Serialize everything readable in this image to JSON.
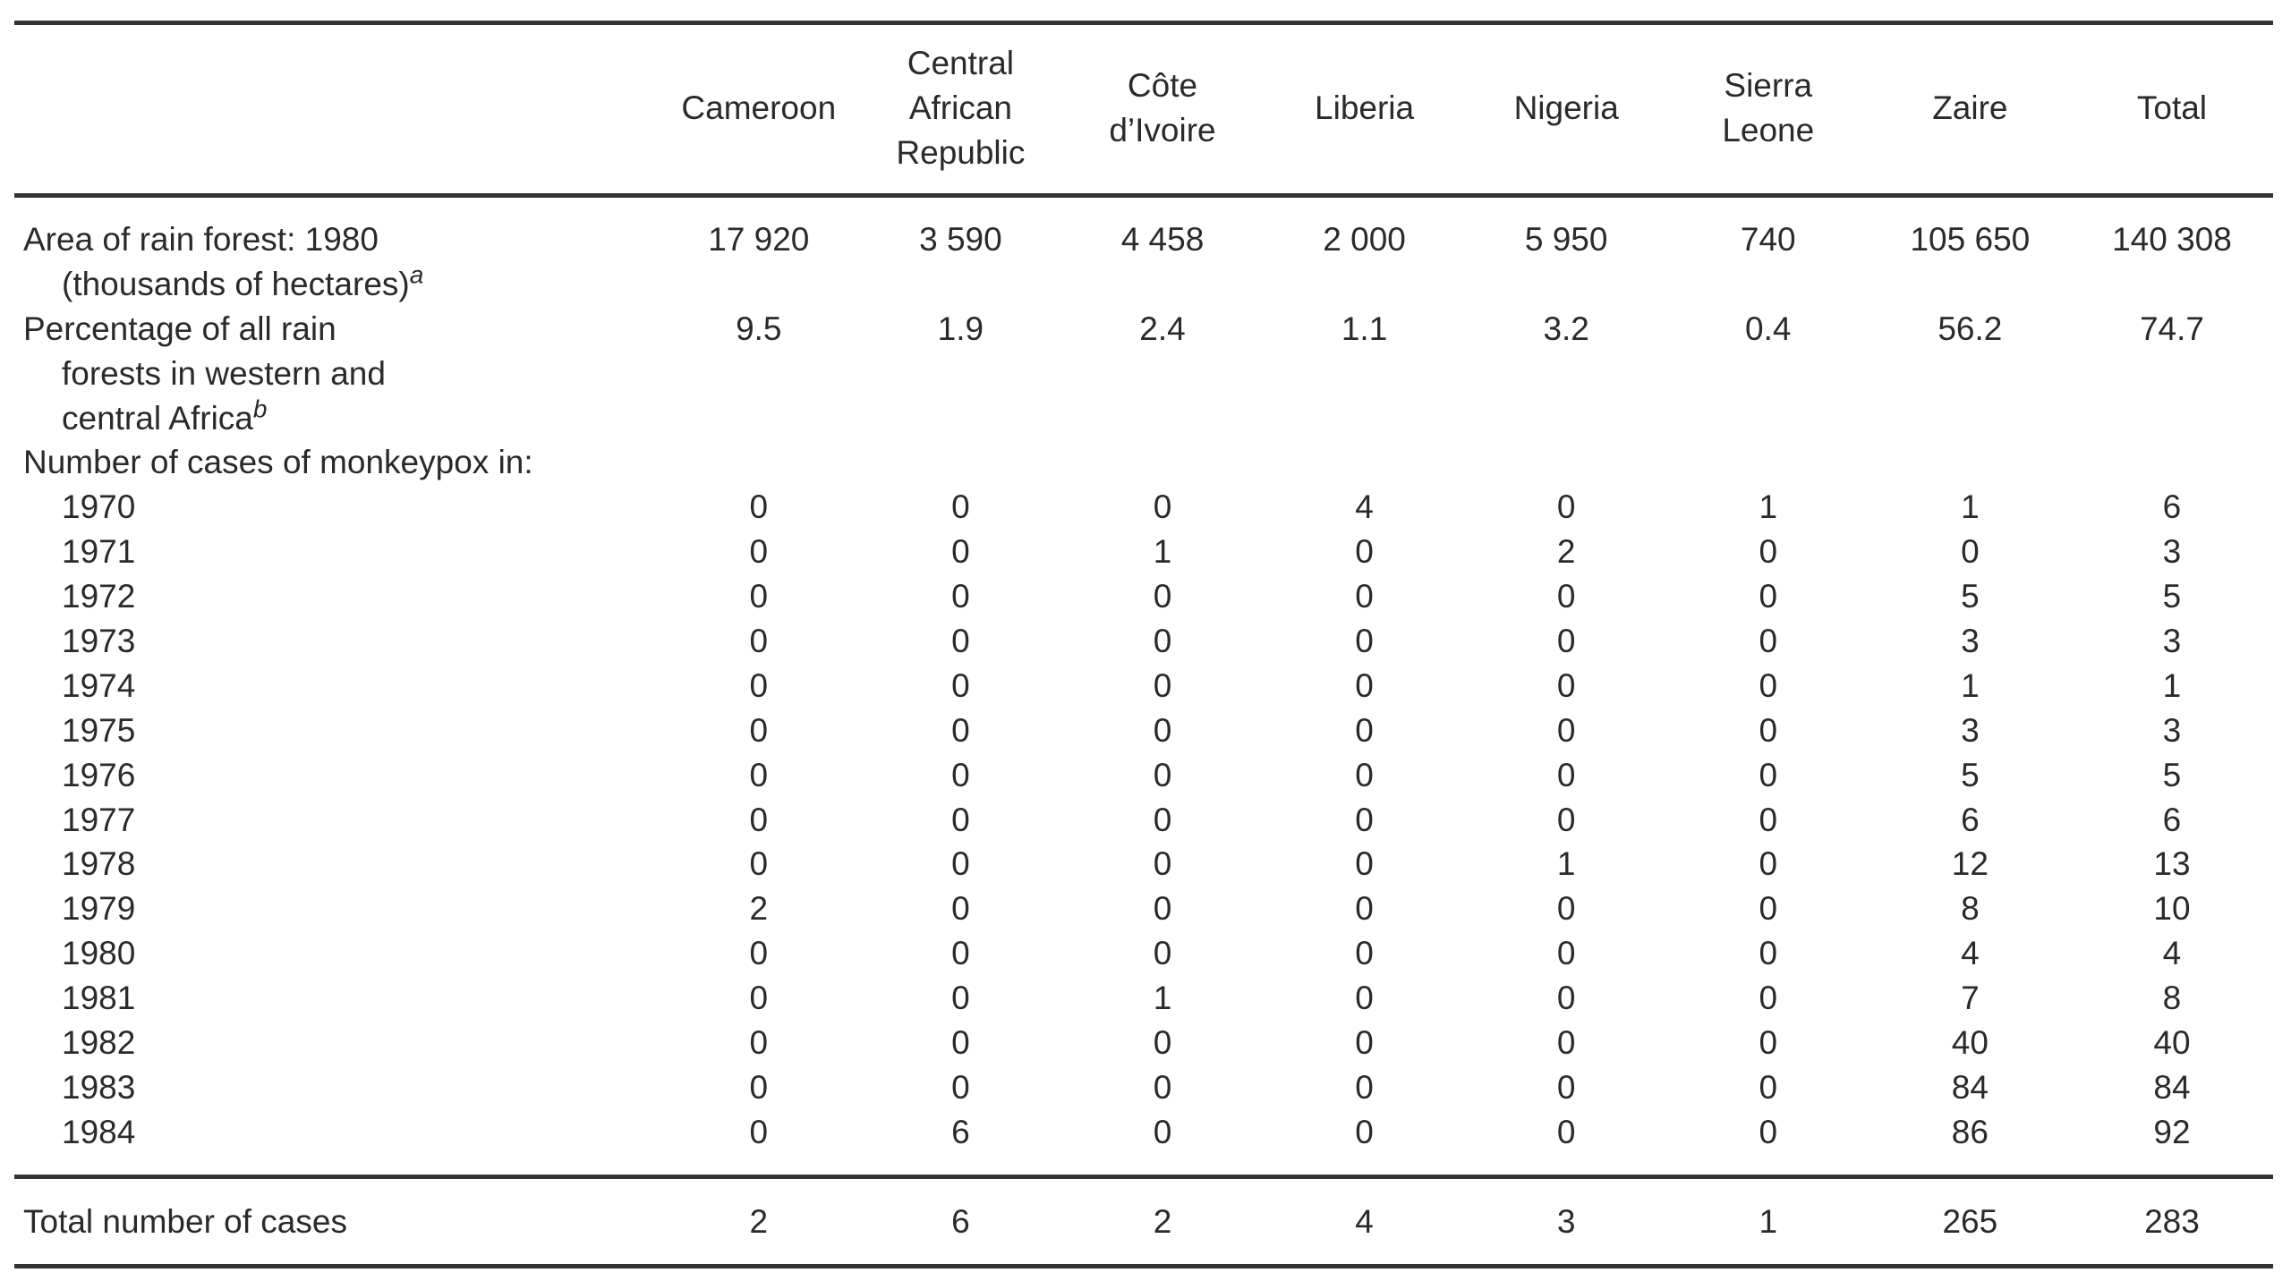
{
  "table": {
    "columns": [
      [
        "Cameroon"
      ],
      [
        "Central",
        "African",
        "Republic"
      ],
      [
        "Côte",
        "d’Ivoire"
      ],
      [
        "Liberia"
      ],
      [
        "Nigeria"
      ],
      [
        "Sierra",
        "Leone"
      ],
      [
        "Zaire"
      ],
      [
        "Total"
      ]
    ],
    "rows": [
      {
        "label": "Area of rain forest: 1980",
        "values": [
          "17 920",
          "3 590",
          "4 458",
          "2 000",
          "5 950",
          "740",
          "105 650",
          "140 308"
        ]
      },
      {
        "label": "(thousands of hectares)",
        "sup": "a",
        "indent": true,
        "values": []
      },
      {
        "label": "Percentage of all rain",
        "values": [
          "9.5",
          "1.9",
          "2.4",
          "1.1",
          "3.2",
          "0.4",
          "56.2",
          "74.7"
        ]
      },
      {
        "label": "forests in western and",
        "indent": true,
        "values": []
      },
      {
        "label": "central Africa",
        "sup": "b",
        "indent": true,
        "values": []
      },
      {
        "label": "Number of cases of monkeypox in:",
        "values": []
      },
      {
        "label": "1970",
        "indent": true,
        "values": [
          "0",
          "0",
          "0",
          "4",
          "0",
          "1",
          "1",
          "6"
        ]
      },
      {
        "label": "1971",
        "indent": true,
        "values": [
          "0",
          "0",
          "1",
          "0",
          "2",
          "0",
          "0",
          "3"
        ]
      },
      {
        "label": "1972",
        "indent": true,
        "values": [
          "0",
          "0",
          "0",
          "0",
          "0",
          "0",
          "5",
          "5"
        ]
      },
      {
        "label": "1973",
        "indent": true,
        "values": [
          "0",
          "0",
          "0",
          "0",
          "0",
          "0",
          "3",
          "3"
        ]
      },
      {
        "label": "1974",
        "indent": true,
        "values": [
          "0",
          "0",
          "0",
          "0",
          "0",
          "0",
          "1",
          "1"
        ]
      },
      {
        "label": "1975",
        "indent": true,
        "values": [
          "0",
          "0",
          "0",
          "0",
          "0",
          "0",
          "3",
          "3"
        ]
      },
      {
        "label": "1976",
        "indent": true,
        "values": [
          "0",
          "0",
          "0",
          "0",
          "0",
          "0",
          "5",
          "5"
        ]
      },
      {
        "label": "1977",
        "indent": true,
        "values": [
          "0",
          "0",
          "0",
          "0",
          "0",
          "0",
          "6",
          "6"
        ]
      },
      {
        "label": "1978",
        "indent": true,
        "values": [
          "0",
          "0",
          "0",
          "0",
          "1",
          "0",
          "12",
          "13"
        ]
      },
      {
        "label": "1979",
        "indent": true,
        "values": [
          "2",
          "0",
          "0",
          "0",
          "0",
          "0",
          "8",
          "10"
        ]
      },
      {
        "label": "1980",
        "indent": true,
        "values": [
          "0",
          "0",
          "0",
          "0",
          "0",
          "0",
          "4",
          "4"
        ]
      },
      {
        "label": "1981",
        "indent": true,
        "values": [
          "0",
          "0",
          "1",
          "0",
          "0",
          "0",
          "7",
          "8"
        ]
      },
      {
        "label": "1982",
        "indent": true,
        "values": [
          "0",
          "0",
          "0",
          "0",
          "0",
          "0",
          "40",
          "40"
        ]
      },
      {
        "label": "1983",
        "indent": true,
        "values": [
          "0",
          "0",
          "0",
          "0",
          "0",
          "0",
          "84",
          "84"
        ]
      },
      {
        "label": "1984",
        "indent": true,
        "values": [
          "0",
          "6",
          "0",
          "0",
          "0",
          "0",
          "86",
          "92"
        ]
      }
    ],
    "total_row": {
      "label": "Total number of cases",
      "values": [
        "2",
        "6",
        "2",
        "4",
        "3",
        "1",
        "265",
        "283"
      ]
    }
  }
}
